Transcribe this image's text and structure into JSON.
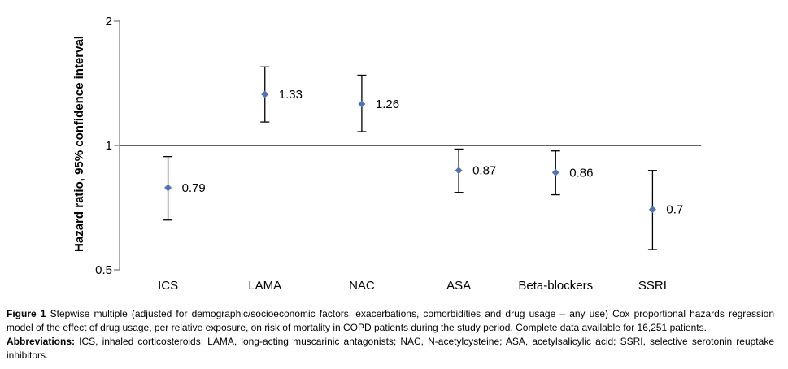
{
  "figure": {
    "caption": {
      "label": "Figure 1",
      "text": "Stepwise multiple (adjusted for demographic/socioeconomic factors, exacerbations, comorbidities and drug usage – any use) Cox proportional hazards regression model of the effect of drug usage, per relative exposure, on risk of mortality in COPD patients during the study period. Complete data available for 16,251 patients.",
      "abbreviations_label": "Abbreviations:",
      "abbreviations_text": "ICS, inhaled corticosteroids; LAMA, long-acting muscarinic antagonists; NAC, N-acetylcysteine; ASA, acetylsalicylic acid; SSRI, selective serotonin reuptake inhibitors."
    }
  },
  "chart_data": {
    "type": "scatter",
    "subtype": "point-estimates-with-error-bars",
    "title": "",
    "xlabel": "",
    "ylabel": "Hazard ratio, 95% confidence interval",
    "categories": [
      "ICS",
      "LAMA",
      "NAC",
      "ASA",
      "Beta-blockers",
      "SSRI"
    ],
    "series": [
      {
        "name": "Hazard ratio",
        "values": [
          0.79,
          1.33,
          1.26,
          0.87,
          0.86,
          0.7
        ],
        "ci_low": [
          0.66,
          1.14,
          1.08,
          0.77,
          0.76,
          0.56
        ],
        "ci_high": [
          0.94,
          1.55,
          1.48,
          0.98,
          0.97,
          0.87
        ],
        "point_labels": [
          "0.79",
          "1.33",
          "1.26",
          "0.87",
          "0.86",
          "0.7"
        ]
      }
    ],
    "y_scale": "log",
    "ylim": [
      0.5,
      2
    ],
    "y_ticks": [
      2,
      1,
      0.5
    ],
    "y_tick_labels": [
      "2",
      "1",
      "0.5"
    ],
    "reference_line": 1,
    "grid": false,
    "legend": "none",
    "marker": "diamond",
    "colors": {
      "marker": "#5373b3",
      "error_bar": "#000000",
      "axis": "#808080",
      "reference_line": "#000000",
      "text": "#000000"
    }
  }
}
